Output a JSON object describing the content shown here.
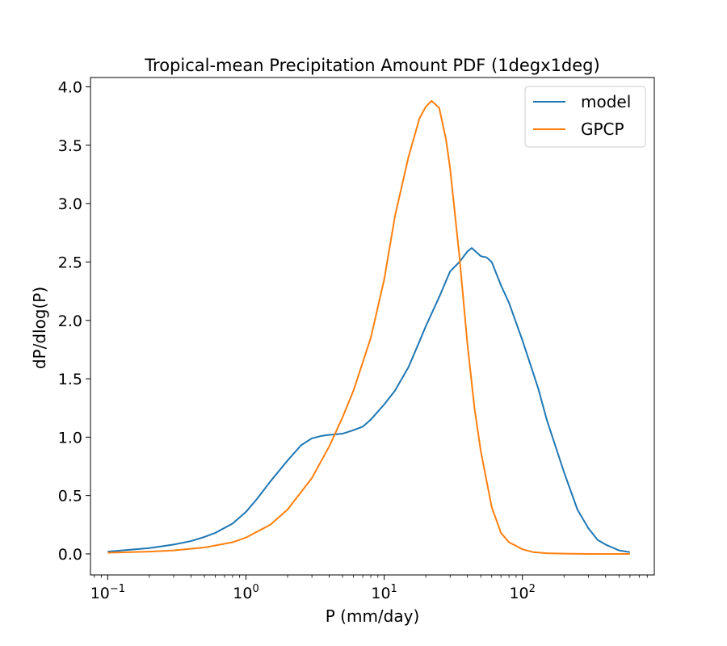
{
  "chart_data": {
    "type": "line",
    "title": "Tropical-mean Precipitation Amount PDF (1degx1deg)",
    "xlabel": "P (mm/day)",
    "ylabel": "dP/dlog(P)",
    "xscale": "log",
    "xlim": [
      0.075,
      900
    ],
    "ylim": [
      -0.18,
      4.08
    ],
    "x_ticks": [
      {
        "value": 0.1,
        "base": "10",
        "exp": "−1"
      },
      {
        "value": 1,
        "base": "10",
        "exp": "0"
      },
      {
        "value": 10,
        "base": "10",
        "exp": "1"
      },
      {
        "value": 100,
        "base": "10",
        "exp": "2"
      }
    ],
    "y_ticks": [
      {
        "value": 0.0,
        "label": "0.0"
      },
      {
        "value": 0.5,
        "label": "0.5"
      },
      {
        "value": 1.0,
        "label": "1.0"
      },
      {
        "value": 1.5,
        "label": "1.5"
      },
      {
        "value": 2.0,
        "label": "2.0"
      },
      {
        "value": 2.5,
        "label": "2.5"
      },
      {
        "value": 3.0,
        "label": "3.0"
      },
      {
        "value": 3.5,
        "label": "3.5"
      },
      {
        "value": 4.0,
        "label": "4.0"
      }
    ],
    "legend_position": "top-right",
    "series": [
      {
        "name": "model",
        "color": "#1f77b4",
        "x": [
          0.1,
          0.2,
          0.3,
          0.4,
          0.5,
          0.6,
          0.8,
          1.0,
          1.2,
          1.5,
          2.0,
          2.5,
          3.0,
          3.5,
          4.0,
          4.5,
          5.0,
          6.0,
          7.0,
          8.0,
          10,
          12,
          15,
          18,
          20,
          25,
          30,
          35,
          40,
          43,
          50,
          55,
          60,
          70,
          80,
          100,
          130,
          150,
          200,
          250,
          300,
          350,
          400,
          500,
          600
        ],
        "values": [
          0.02,
          0.05,
          0.08,
          0.11,
          0.145,
          0.18,
          0.26,
          0.36,
          0.47,
          0.62,
          0.8,
          0.93,
          0.99,
          1.01,
          1.02,
          1.025,
          1.03,
          1.06,
          1.09,
          1.15,
          1.28,
          1.4,
          1.6,
          1.82,
          1.95,
          2.2,
          2.42,
          2.5,
          2.59,
          2.62,
          2.55,
          2.54,
          2.5,
          2.3,
          2.15,
          1.83,
          1.42,
          1.15,
          0.7,
          0.38,
          0.22,
          0.12,
          0.08,
          0.03,
          0.015
        ]
      },
      {
        "name": "GPCP",
        "color": "#ff7f0e",
        "x": [
          0.1,
          0.2,
          0.3,
          0.5,
          0.8,
          1.0,
          1.5,
          2.0,
          3.0,
          4.0,
          5.0,
          6.0,
          8.0,
          10,
          12,
          15,
          18,
          20,
          22,
          25,
          28,
          30,
          35,
          40,
          45,
          50,
          60,
          70,
          80,
          100,
          120,
          150,
          200,
          300,
          400,
          600
        ],
        "values": [
          0.01,
          0.02,
          0.03,
          0.055,
          0.1,
          0.14,
          0.25,
          0.38,
          0.65,
          0.92,
          1.17,
          1.4,
          1.85,
          2.35,
          2.9,
          3.4,
          3.73,
          3.83,
          3.88,
          3.82,
          3.55,
          3.3,
          2.55,
          1.8,
          1.25,
          0.88,
          0.4,
          0.18,
          0.1,
          0.04,
          0.015,
          0.006,
          0.002,
          0.0,
          0.0,
          0.0
        ]
      }
    ]
  }
}
